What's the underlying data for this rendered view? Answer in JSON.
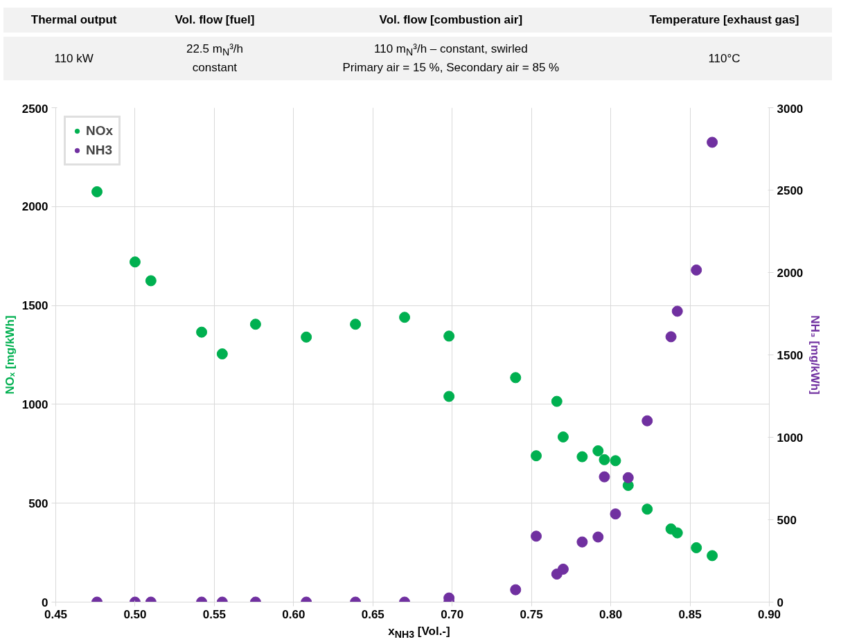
{
  "chart_data": {
    "type": "scatter",
    "xlabel": "x$_{NH3}$ [Vol.-]",
    "ylabel": "NOₓ [mg/kWh]",
    "y2label": "NH₃ [mg/kWh]",
    "annotations": [
      "Thermal output",
      "Vol. flow [fuel]",
      "Vol. flow [combustion air]",
      "Temperature [exhaust gas]",
      "110 kW",
      "22.5 m$_{N}$³/h\nconstant",
      "110 m$_{N}$³/h – constant, swirled\nPrimary air = 15 %, Secondary air = 85 %",
      "110°C"
    ],
    "xlim": [
      0.45,
      0.9
    ],
    "xticks": [
      {
        "value": 0.45,
        "label": "0.45"
      },
      {
        "value": 0.5,
        "label": "0.50"
      },
      {
        "value": 0.55,
        "label": "0.55"
      },
      {
        "value": 0.6,
        "label": "0.60"
      },
      {
        "value": 0.65,
        "label": "0.65"
      },
      {
        "value": 0.7,
        "label": "0.70"
      },
      {
        "value": 0.75,
        "label": "0.75"
      },
      {
        "value": 0.8,
        "label": "0.80"
      },
      {
        "value": 0.85,
        "label": "0.85"
      },
      {
        "value": 0.9,
        "label": "0.90"
      }
    ],
    "ylim": [
      0,
      2500
    ],
    "yticks": [
      0,
      500,
      1000,
      1500,
      2000,
      2500
    ],
    "y2lim": [
      0,
      3000
    ],
    "y2ticks": [
      0,
      500,
      1000,
      1500,
      2000,
      2500,
      3000
    ],
    "grid": true,
    "legend": "top left",
    "marker": "circle",
    "series": [
      {
        "name": "NOx",
        "color": "#00b050",
        "x": [
          0.476,
          0.5,
          0.51,
          0.542,
          0.555,
          0.576,
          0.608,
          0.639,
          0.67,
          0.698,
          0.698,
          0.74,
          0.753,
          0.766,
          0.77,
          0.782,
          0.792,
          0.796,
          0.803,
          0.811,
          0.823,
          0.838,
          0.842,
          0.854,
          0.864
        ],
        "values": [
          2075,
          1720,
          1625,
          1365,
          1255,
          1405,
          1340,
          1405,
          1440,
          1345,
          1040,
          1135,
          740,
          1015,
          835,
          735,
          765,
          720,
          715,
          590,
          470,
          370,
          350,
          275,
          235
        ]
      },
      {
        "name": "NH3",
        "color": "#7030a0",
        "axis": "y2",
        "x": [
          0.476,
          0.5,
          0.51,
          0.542,
          0.555,
          0.576,
          0.608,
          0.639,
          0.67,
          0.698,
          0.698,
          0.74,
          0.753,
          0.766,
          0.77,
          0.782,
          0.792,
          0.796,
          0.803,
          0.811,
          0.823,
          0.838,
          0.842,
          0.854,
          0.864
        ],
        "values": [
          0,
          0,
          0,
          0,
          0,
          0,
          0,
          0,
          0,
          0,
          25,
          75,
          400,
          170,
          200,
          365,
          395,
          760,
          535,
          755,
          1100,
          1610,
          1765,
          2015,
          2790
        ]
      }
    ]
  }
}
